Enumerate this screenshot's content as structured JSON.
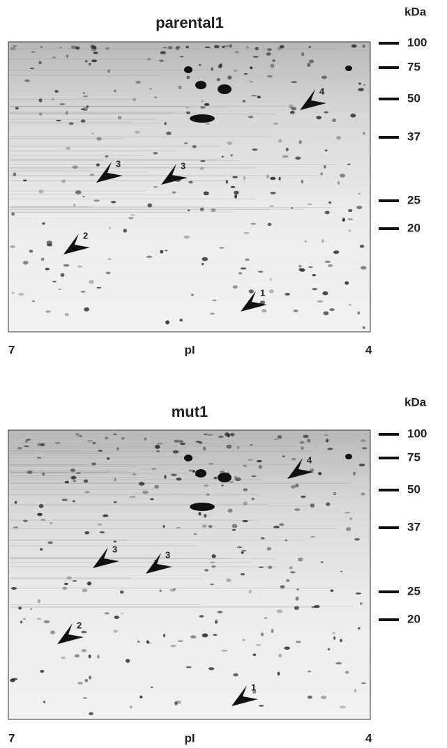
{
  "panels": [
    {
      "title": "parental1",
      "unit": "kDa",
      "markers": [
        "100",
        "75",
        "50",
        "37",
        "25",
        "20"
      ],
      "x_axis": {
        "left": "7",
        "label": "pI",
        "right": "4"
      },
      "arrows": [
        "4",
        "3",
        "3",
        "2",
        "1"
      ]
    },
    {
      "title": "mut1",
      "unit": "kDa",
      "markers": [
        "100",
        "75",
        "50",
        "37",
        "25",
        "20"
      ],
      "x_axis": {
        "left": "7",
        "label": "pI",
        "right": "4"
      },
      "arrows": [
        "4",
        "3",
        "3",
        "2",
        "1"
      ]
    }
  ]
}
